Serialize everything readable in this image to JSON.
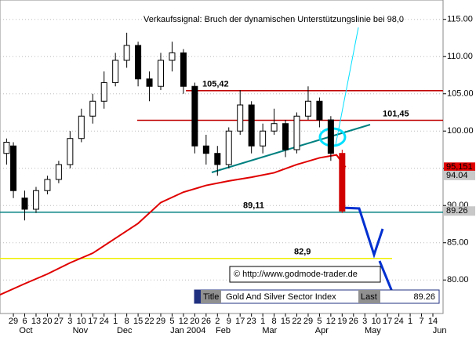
{
  "chart_data": {
    "type": "candlestick",
    "annotation": "Verkaufssignal: Bruch der dynamischen Unterstützungslinie bei 98,0",
    "copyright": "© http://www.godmode-trader.de",
    "info": {
      "title_label": "Title",
      "name": "Gold And Silver Sector Index",
      "last_label": "Last",
      "last": 89.26
    },
    "x": [
      -0.6,
      0,
      1,
      2,
      3,
      4,
      5,
      6,
      7,
      8,
      9,
      10,
      11,
      12,
      13,
      14,
      15,
      16,
      17,
      18,
      19,
      20,
      21,
      22,
      23,
      24,
      25,
      26,
      27,
      28,
      29
    ],
    "open": [
      97,
      98,
      91,
      89.5,
      92,
      93.5,
      95.5,
      99,
      102,
      104,
      106.5,
      109.5,
      111.5,
      107,
      106,
      109.5,
      110.5,
      106,
      98,
      97,
      95.5,
      100,
      103.5,
      98,
      100,
      101,
      97.5,
      102,
      104,
      101.5,
      97
    ],
    "high": [
      99,
      98.5,
      92,
      92.5,
      94,
      96,
      100,
      103,
      105,
      108,
      110.5,
      113.2,
      112,
      108,
      110.5,
      112,
      111,
      106.5,
      99.5,
      98,
      100.5,
      105.5,
      104,
      101,
      103,
      101.5,
      102.5,
      106,
      104.5,
      102,
      97.5
    ],
    "low": [
      95.5,
      91,
      88,
      89,
      91.5,
      93,
      95,
      98.5,
      101,
      103,
      106,
      108.5,
      106,
      104,
      105.5,
      108,
      105,
      97,
      95.5,
      94,
      95,
      99.5,
      97,
      97,
      99.5,
      96.5,
      97,
      101.5,
      100.5,
      96,
      89
    ],
    "close": [
      98.5,
      92,
      89.5,
      92,
      93.5,
      95.5,
      99,
      102,
      104,
      106.5,
      109.5,
      111.5,
      107,
      106,
      109.5,
      110.5,
      106,
      98,
      97,
      95.5,
      100,
      103.5,
      98,
      100,
      101,
      97.5,
      102,
      104,
      101.5,
      97,
      89.26
    ],
    "moving_average": {
      "color": "#e00000",
      "x": [
        -1.2,
        1,
        3,
        5,
        7,
        9,
        11,
        13,
        15,
        17,
        19,
        21,
        23,
        25,
        27,
        28.5,
        29.3
      ],
      "values": [
        78,
        79.5,
        80.8,
        82.3,
        83.6,
        85.6,
        87.6,
        90.4,
        91.8,
        92.7,
        93.3,
        93.8,
        94.4,
        95.5,
        96.4,
        96.8,
        95.151
      ]
    },
    "hlines": [
      {
        "value": 105.42,
        "label": "105,42",
        "color": "#c00000"
      },
      {
        "value": 101.45,
        "label": "101,45",
        "color": "#c00000"
      },
      {
        "value": 89.11,
        "label": "89,11",
        "color": "#008080"
      },
      {
        "value": 82.9,
        "label": "82,9",
        "color": "#f0f000"
      }
    ],
    "price_tags": [
      {
        "value": 95.151,
        "label": "95,151",
        "color": "#e00000"
      },
      {
        "value": 94.04,
        "label": "94.04",
        "color": "#c8c8c8"
      },
      {
        "value": 89.26,
        "label": "89.26",
        "color": "#c8c8c8"
      }
    ],
    "xlim": [
      -1.18,
      37.9
    ],
    "ylim": [
      75.5,
      117.6
    ],
    "yticks": [
      {
        "value": 80,
        "label": "80.00"
      },
      {
        "value": 85,
        "label": "85.00"
      },
      {
        "value": 90,
        "label": "90.00"
      },
      {
        "value": 95,
        "label": "95.00"
      },
      {
        "value": 100,
        "label": "100.00"
      },
      {
        "value": 105,
        "label": "105.00"
      },
      {
        "value": 110,
        "label": "110.00"
      },
      {
        "value": 115,
        "label": "115.00"
      }
    ],
    "xticks": [
      {
        "value": 0,
        "label": "29"
      },
      {
        "value": 1,
        "label": "6"
      },
      {
        "value": 2,
        "label": "13"
      },
      {
        "value": 3,
        "label": "20"
      },
      {
        "value": 4,
        "label": "27"
      },
      {
        "value": 5,
        "label": "3"
      },
      {
        "value": 6,
        "label": "10"
      },
      {
        "value": 7,
        "label": "17"
      },
      {
        "value": 8,
        "label": "24"
      },
      {
        "value": 9,
        "label": "1"
      },
      {
        "value": 10,
        "label": "8"
      },
      {
        "value": 11,
        "label": "15"
      },
      {
        "value": 12,
        "label": "22"
      },
      {
        "value": 13,
        "label": "29"
      },
      {
        "value": 14,
        "label": "5"
      },
      {
        "value": 15,
        "label": "12"
      },
      {
        "value": 16,
        "label": "20"
      },
      {
        "value": 17,
        "label": "26"
      },
      {
        "value": 18,
        "label": "2"
      },
      {
        "value": 19,
        "label": "9"
      },
      {
        "value": 20,
        "label": "17"
      },
      {
        "value": 21,
        "label": "23"
      },
      {
        "value": 22,
        "label": "1"
      },
      {
        "value": 23,
        "label": "8"
      },
      {
        "value": 24,
        "label": "15"
      },
      {
        "value": 25,
        "label": "22"
      },
      {
        "value": 26,
        "label": "29"
      },
      {
        "value": 27,
        "label": "5"
      },
      {
        "value": 28,
        "label": "12"
      },
      {
        "value": 29,
        "label": "19"
      },
      {
        "value": 30,
        "label": "26"
      },
      {
        "value": 31,
        "label": "3"
      },
      {
        "value": 32,
        "label": "10"
      },
      {
        "value": 33,
        "label": "17"
      },
      {
        "value": 34,
        "label": "24"
      },
      {
        "value": 35,
        "label": "1"
      },
      {
        "value": 36,
        "label": "7"
      },
      {
        "value": 37,
        "label": "14"
      }
    ],
    "month_ticks": [
      {
        "value": 1.1,
        "label": "Oct"
      },
      {
        "value": 5.9,
        "label": "Nov"
      },
      {
        "value": 9.8,
        "label": "Dec"
      },
      {
        "value": 15.4,
        "label": "Jan 2004"
      },
      {
        "value": 18.5,
        "label": "Feb"
      },
      {
        "value": 22.6,
        "label": "Mar"
      },
      {
        "value": 27.2,
        "label": "Apr"
      },
      {
        "value": 31.7,
        "label": "May"
      },
      {
        "value": 37.6,
        "label": "Jun"
      }
    ],
    "grid": true
  }
}
